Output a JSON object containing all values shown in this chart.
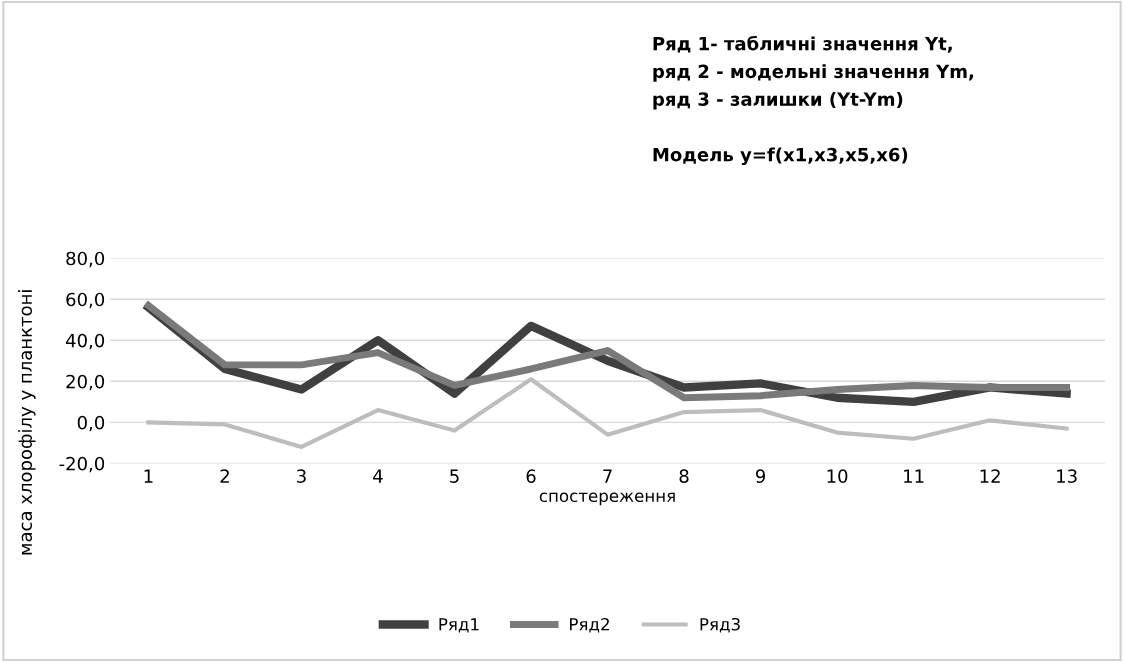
{
  "chart_data": {
    "type": "line",
    "annotations": [
      "Ряд 1- табличні значення Yt,\nряд 2 - модельні значення Ym,\nряд 3 - залишки (Yt-Ym)\n\nМодель y=f(x1,x3,x5,x6)"
    ],
    "xlabel": "спостереження",
    "ylabel": "маса хлорофілу у планктоні",
    "categories": [
      "1",
      "2",
      "3",
      "4",
      "5",
      "6",
      "7",
      "8",
      "9",
      "10",
      "11",
      "12",
      "13"
    ],
    "series": [
      {
        "name": "Ряд1",
        "color": "#404040",
        "values": [
          56,
          26,
          16,
          40,
          14,
          47,
          30,
          17,
          19,
          12,
          10,
          17,
          14
        ]
      },
      {
        "name": "Ряд2",
        "color": "#7a7a7a",
        "values": [
          57,
          28,
          28,
          34,
          18,
          26,
          35,
          12,
          13,
          16,
          18,
          17,
          17
        ]
      },
      {
        "name": "Ряд3",
        "color": "#bdbdbd",
        "values": [
          0,
          -1,
          -12,
          6,
          -4,
          21,
          -6,
          5,
          6,
          -5,
          -8,
          1,
          -3
        ]
      }
    ],
    "ylim": [
      -20,
      80
    ],
    "yticks": [
      {
        "value": -20,
        "label": "-20,0"
      },
      {
        "value": 0,
        "label": "0,0"
      },
      {
        "value": 20,
        "label": "20,0"
      },
      {
        "value": 40,
        "label": "40,0"
      },
      {
        "value": 60,
        "label": "60,0"
      },
      {
        "value": 80,
        "label": "80,0"
      }
    ],
    "grid": "y",
    "legend": "bottom",
    "line_style": "solid",
    "marker": "none"
  }
}
